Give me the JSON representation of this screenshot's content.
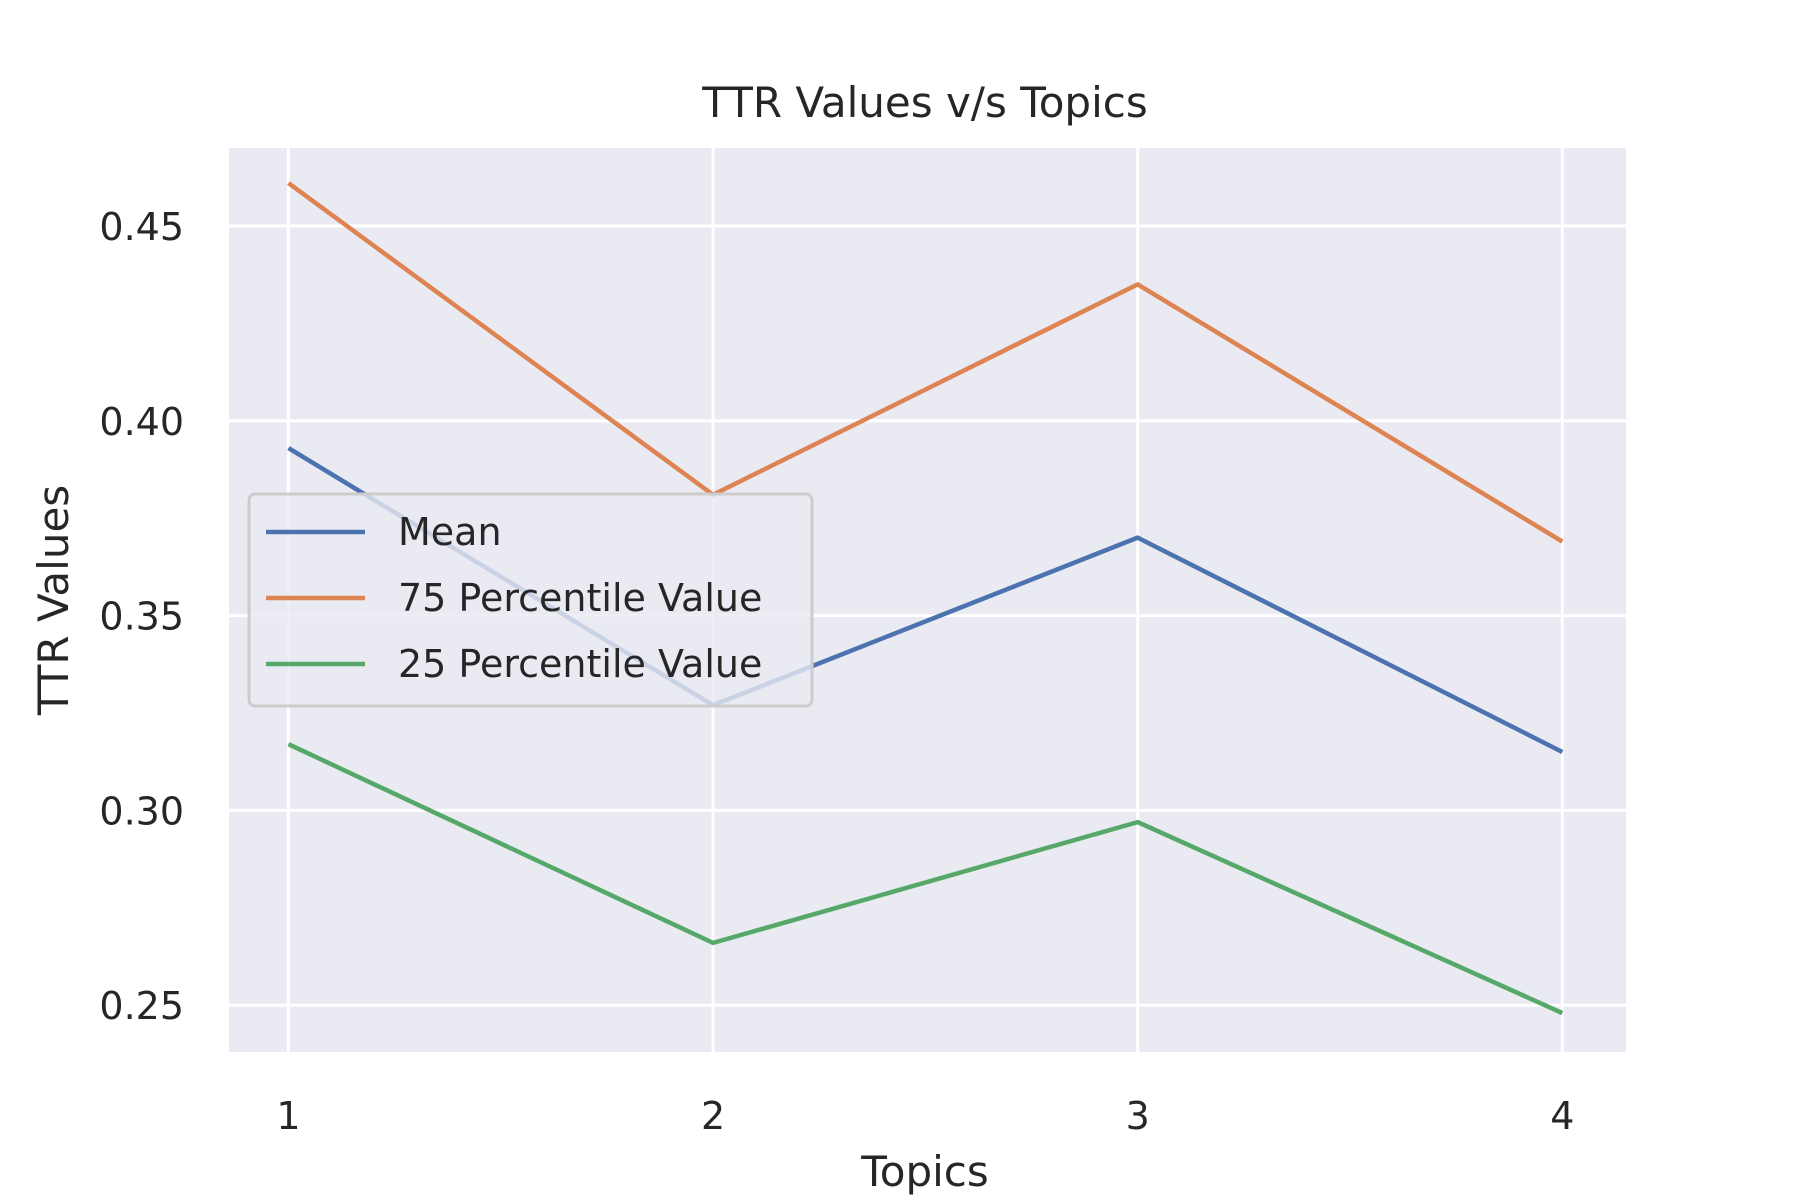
{
  "chart_data": {
    "type": "line",
    "title": "TTR Values v/s Topics",
    "xlabel": "Topics",
    "ylabel": "TTR Values",
    "x": [
      1,
      2,
      3,
      4
    ],
    "x_ticks": [
      "1",
      "2",
      "3",
      "4"
    ],
    "y_ticks": [
      "0.25",
      "0.30",
      "0.35",
      "0.40",
      "0.45"
    ],
    "y_tick_values": [
      0.25,
      0.3,
      0.35,
      0.4,
      0.45
    ],
    "xlim": [
      0.86,
      4.15
    ],
    "ylim": [
      0.238,
      0.47
    ],
    "grid": true,
    "legend_position": "center-left",
    "style": {
      "plot_bg": "#eaeaf2",
      "grid_color": "#ffffff"
    },
    "series": [
      {
        "name": "Mean",
        "values": [
          0.393,
          0.327,
          0.37,
          0.315
        ],
        "color": "#4c72b0"
      },
      {
        "name": "75 Percentile Value",
        "values": [
          0.461,
          0.381,
          0.435,
          0.369
        ],
        "color": "#dd8452"
      },
      {
        "name": "25 Percentile Value",
        "values": [
          0.317,
          0.266,
          0.297,
          0.248
        ],
        "color": "#55a868"
      }
    ]
  }
}
